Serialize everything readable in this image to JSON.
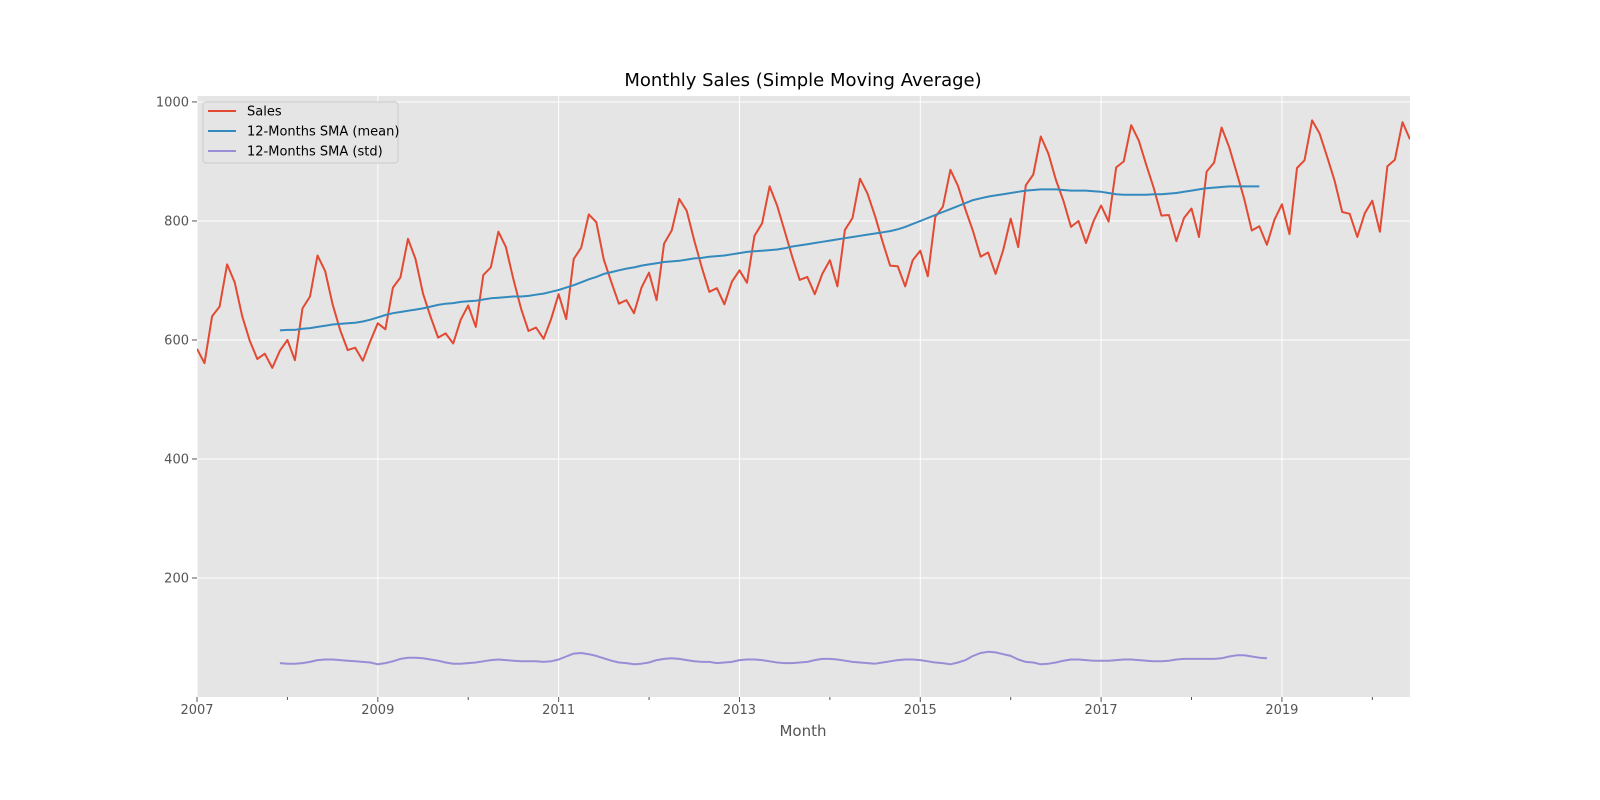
{
  "chart_data": {
    "type": "line",
    "title": "Monthly Sales (Simple Moving Average)",
    "xlabel": "Month",
    "ylabel": "",
    "x_axis": "monthly dates",
    "xlim": [
      "2007-01",
      "2020-06"
    ],
    "ylim": [
      0,
      1010
    ],
    "yticks": [
      200,
      400,
      600,
      800,
      1000
    ],
    "xtick_labels": [
      "2007",
      "2009",
      "2011",
      "2013",
      "2015",
      "2017",
      "2019"
    ],
    "grid": true,
    "legend_position": "upper left",
    "series": [
      {
        "name": "Sales",
        "color": "#E24A33",
        "start": "2007-01",
        "values": [
          585,
          561,
          640,
          656,
          727,
          697,
          640,
          599,
          568,
          577,
          553,
          582,
          600,
          566,
          653,
          673,
          742,
          716,
          660,
          617,
          583,
          587,
          565,
          598,
          628,
          618,
          688,
          705,
          770,
          736,
          678,
          639,
          604,
          611,
          594,
          634,
          658,
          622,
          709,
          722,
          782,
          756,
          702,
          653,
          615,
          621,
          602,
          635,
          677,
          635,
          736,
          755,
          811,
          798,
          735,
          697,
          661,
          667,
          645,
          688,
          713,
          667,
          762,
          784,
          837,
          817,
          767,
          722,
          681,
          687,
          660,
          698,
          717,
          696,
          775,
          796,
          858,
          826,
          783,
          740,
          701,
          706,
          677,
          711,
          734,
          690,
          785,
          805,
          871,
          846,
          808,
          765,
          725,
          724,
          690,
          734,
          750,
          707,
          807,
          824,
          886,
          859,
          819,
          783,
          740,
          747,
          711,
          751,
          804,
          756,
          860,
          878,
          942,
          913,
          869,
          834,
          790,
          800,
          763,
          800,
          826,
          799,
          890,
          900,
          961,
          935,
          894,
          855,
          809,
          810,
          766,
          805,
          821,
          773,
          883,
          898,
          957,
          924,
          881,
          837,
          784,
          791,
          760,
          802,
          828,
          778,
          889,
          902,
          969,
          947,
          908,
          867,
          815,
          812,
          773,
          813,
          834,
          782,
          892,
          903,
          966,
          937
        ]
      },
      {
        "name": "12-Months SMA (mean)",
        "color": "#348ABD",
        "start": "2007-12",
        "values": [
          616,
          617,
          617,
          619,
          620,
          622,
          624,
          626,
          627,
          628,
          629,
          631,
          634,
          638,
          642,
          645,
          647,
          649,
          651,
          653,
          656,
          659,
          661,
          662,
          664,
          665,
          666,
          668,
          670,
          671,
          672,
          673,
          673,
          674,
          676,
          678,
          681,
          684,
          688,
          692,
          697,
          702,
          706,
          711,
          714,
          717,
          720,
          722,
          725,
          727,
          729,
          731,
          732,
          733,
          735,
          737,
          738,
          740,
          741,
          742,
          744,
          746,
          748,
          749,
          750,
          751,
          752,
          754,
          757,
          759,
          761,
          763,
          765,
          767,
          769,
          771,
          773,
          775,
          777,
          779,
          781,
          783,
          786,
          790,
          795,
          800,
          805,
          810,
          815,
          820,
          825,
          830,
          835,
          838,
          841,
          843,
          845,
          847,
          849,
          851,
          852,
          853,
          853,
          853,
          852,
          851,
          851,
          851,
          850,
          849,
          847,
          845,
          844,
          844,
          844,
          844,
          845,
          845,
          846,
          847,
          849,
          851,
          853,
          855,
          856,
          857,
          858,
          858,
          858,
          858,
          858
        ]
      },
      {
        "name": "12-Months SMA (std)",
        "color": "#988ED5",
        "start": "2007-12",
        "values": [
          57,
          56,
          56,
          57,
          59,
          62,
          63,
          63,
          62,
          61,
          60,
          59,
          58,
          55,
          57,
          60,
          64,
          66,
          66,
          65,
          63,
          61,
          58,
          56,
          56,
          57,
          58,
          60,
          62,
          63,
          62,
          61,
          60,
          60,
          60,
          59,
          60,
          63,
          68,
          73,
          74,
          72,
          69,
          65,
          61,
          58,
          57,
          55,
          56,
          58,
          62,
          64,
          65,
          64,
          62,
          60,
          59,
          59,
          57,
          58,
          59,
          62,
          63,
          63,
          62,
          60,
          58,
          57,
          57,
          58,
          59,
          62,
          64,
          64,
          63,
          61,
          59,
          58,
          57,
          56,
          58,
          60,
          62,
          63,
          63,
          62,
          60,
          58,
          57,
          55,
          58,
          62,
          69,
          74,
          76,
          75,
          72,
          69,
          63,
          59,
          58,
          55,
          56,
          58,
          61,
          63,
          63,
          62,
          61,
          61,
          61,
          62,
          63,
          63,
          62,
          61,
          60,
          60,
          61,
          63,
          64,
          64,
          64,
          64,
          64,
          65,
          68,
          70,
          70,
          68,
          66,
          65
        ]
      }
    ]
  }
}
